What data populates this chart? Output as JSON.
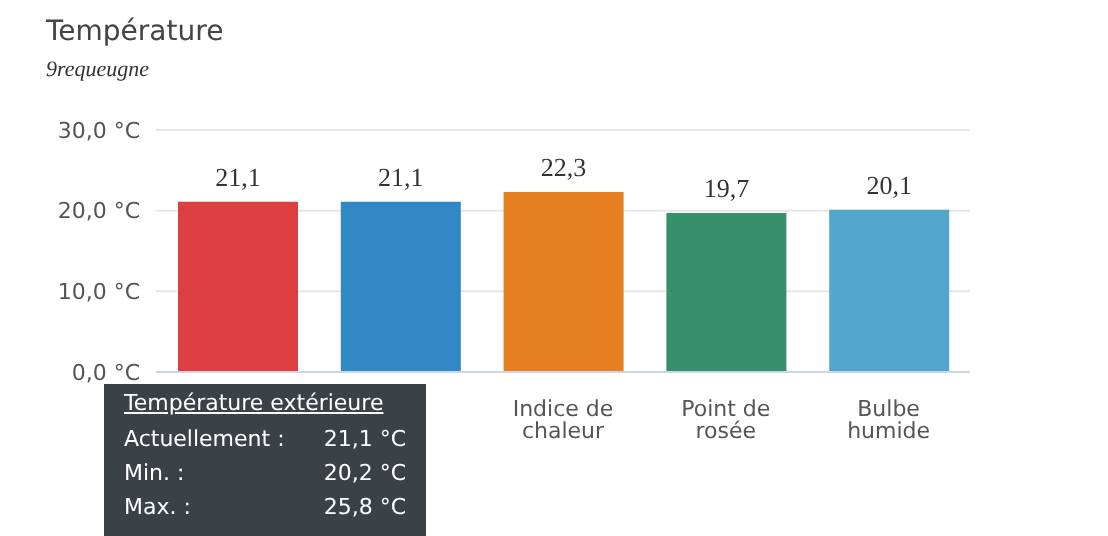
{
  "chart_data": {
    "type": "bar",
    "title": "Température",
    "subtitle": "9requeugne",
    "categories": [
      null,
      null,
      "Indice de chaleur",
      "Point de rosée",
      "Bulbe humide"
    ],
    "values": [
      21.1,
      21.1,
      22.3,
      19.7,
      20.1
    ],
    "colors": [
      "#dc3e42",
      "#3188c4",
      "#e67e22",
      "#37906b",
      "#52a5cd"
    ],
    "value_labels": [
      "21,1",
      "21,1",
      "22,3",
      "19,7",
      "20,1"
    ],
    "ylim": [
      0,
      30
    ],
    "yticks": [
      {
        "value": 0,
        "label": "0,0 °C"
      },
      {
        "value": 10,
        "label": "10,0 °C"
      },
      {
        "value": 20,
        "label": "20,0 °C"
      },
      {
        "value": 30,
        "label": "30,0 °C"
      }
    ],
    "grid": "y",
    "annotations": [
      "Température extérieure",
      "Actuellement :",
      "21,1 °C",
      "Min. :",
      "20,2 °C",
      "Max. :",
      "25,8 °C"
    ]
  }
}
